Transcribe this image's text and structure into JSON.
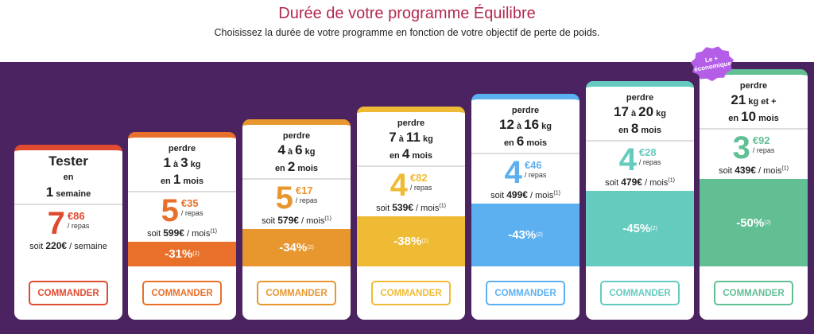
{
  "header": {
    "title": "Durée de votre programme Équilibre",
    "subtitle": "Choisissez la durée de votre programme en fonction de votre objectif de perte de poids."
  },
  "badge": {
    "line1": "Le +",
    "line2": "économique",
    "color": "#b45ee8"
  },
  "cards": [
    {
      "color": "#e04a2f",
      "lines": [
        [
          {
            "t": "Tester",
            "b": true
          }
        ],
        [
          {
            "t": "en",
            "b": false
          }
        ],
        [
          {
            "t": "1",
            "b": true
          },
          {
            "t": " semaine",
            "b": false
          }
        ]
      ],
      "price_int": "7",
      "price_cents": "€86",
      "per": "/ repas",
      "soit": "soit",
      "total": "220€",
      "period": "/ semaine",
      "note": "",
      "discount": "",
      "discount_note": "",
      "button": "COMMANDER"
    },
    {
      "color": "#e8702a",
      "lines": [
        [
          {
            "t": "perdre",
            "b": false
          }
        ],
        [
          {
            "t": "1",
            "b": true
          },
          {
            "t": " à ",
            "b": false
          },
          {
            "t": "3",
            "b": true
          },
          {
            "t": " kg",
            "b": false
          }
        ],
        [
          {
            "t": "en ",
            "b": false
          },
          {
            "t": "1",
            "b": true
          },
          {
            "t": " mois",
            "b": false
          }
        ]
      ],
      "price_int": "5",
      "price_cents": "€35",
      "per": "/ repas",
      "soit": "soit",
      "total": "599€",
      "period": "/ mois",
      "note": "(1)",
      "discount": "-31%",
      "discount_note": "(2)",
      "button": "COMMANDER"
    },
    {
      "color": "#e8962e",
      "lines": [
        [
          {
            "t": "perdre",
            "b": false
          }
        ],
        [
          {
            "t": "4",
            "b": true
          },
          {
            "t": " à ",
            "b": false
          },
          {
            "t": "6",
            "b": true
          },
          {
            "t": " kg",
            "b": false
          }
        ],
        [
          {
            "t": "en ",
            "b": false
          },
          {
            "t": "2",
            "b": true
          },
          {
            "t": " mois",
            "b": false
          }
        ]
      ],
      "price_int": "5",
      "price_cents": "€17",
      "per": "/ repas",
      "soit": "soit",
      "total": "579€",
      "period": "/ mois",
      "note": "(1)",
      "discount": "-34%",
      "discount_note": "(2)",
      "button": "COMMANDER"
    },
    {
      "color": "#efbb35",
      "lines": [
        [
          {
            "t": "perdre",
            "b": false
          }
        ],
        [
          {
            "t": "7",
            "b": true
          },
          {
            "t": " à ",
            "b": false
          },
          {
            "t": "11",
            "b": true
          },
          {
            "t": " kg",
            "b": false
          }
        ],
        [
          {
            "t": "en ",
            "b": false
          },
          {
            "t": "4",
            "b": true
          },
          {
            "t": " mois",
            "b": false
          }
        ]
      ],
      "price_int": "4",
      "price_cents": "€82",
      "per": "/ repas",
      "soit": "soit",
      "total": "539€",
      "period": "/ mois",
      "note": "(1)",
      "discount": "-38%",
      "discount_note": "(2)",
      "button": "COMMANDER"
    },
    {
      "color": "#5db0f0",
      "lines": [
        [
          {
            "t": "perdre",
            "b": false
          }
        ],
        [
          {
            "t": "12",
            "b": true
          },
          {
            "t": " à ",
            "b": false
          },
          {
            "t": "16",
            "b": true
          },
          {
            "t": " kg",
            "b": false
          }
        ],
        [
          {
            "t": "en ",
            "b": false
          },
          {
            "t": "6",
            "b": true
          },
          {
            "t": " mois",
            "b": false
          }
        ]
      ],
      "price_int": "4",
      "price_cents": "€46",
      "per": "/ repas",
      "soit": "soit",
      "total": "499€",
      "period": "/ mois",
      "note": "(1)",
      "discount": "-43%",
      "discount_note": "(2)",
      "button": "COMMANDER"
    },
    {
      "color": "#66cbbf",
      "lines": [
        [
          {
            "t": "perdre",
            "b": false
          }
        ],
        [
          {
            "t": "17",
            "b": true
          },
          {
            "t": " à ",
            "b": false
          },
          {
            "t": "20",
            "b": true
          },
          {
            "t": " kg",
            "b": false
          }
        ],
        [
          {
            "t": "en ",
            "b": false
          },
          {
            "t": "8",
            "b": true
          },
          {
            "t": " mois",
            "b": false
          }
        ]
      ],
      "price_int": "4",
      "price_cents": "€28",
      "per": "/ repas",
      "soit": "soit",
      "total": "479€",
      "period": "/ mois",
      "note": "(1)",
      "discount": "-45%",
      "discount_note": "(2)",
      "button": "COMMANDER"
    },
    {
      "color": "#62bf94",
      "lines": [
        [
          {
            "t": "perdre",
            "b": false
          }
        ],
        [
          {
            "t": "21",
            "b": true
          },
          {
            "t": "  kg  et +",
            "b": false
          }
        ],
        [
          {
            "t": "en ",
            "b": false
          },
          {
            "t": "10",
            "b": true
          },
          {
            "t": " mois",
            "b": false
          }
        ]
      ],
      "price_int": "3",
      "price_cents": "€92",
      "per": "/ repas",
      "soit": "soit",
      "total": "439€",
      "period": "/ mois",
      "note": "(1)",
      "discount": "-50%",
      "discount_note": "(2)",
      "button": "COMMANDER"
    }
  ]
}
